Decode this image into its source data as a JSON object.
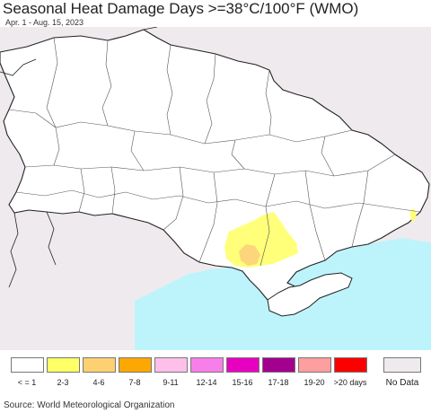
{
  "title": "Seasonal Heat Damage Days >=38°C/100°F (WMO)",
  "date_range": "Apr. 1 - Aug. 15, 2023",
  "source": "Source: World Meteorological Organization",
  "colors": {
    "land": "#ffffff",
    "outside": "#efeaee",
    "sea": "#bdf4fb",
    "borders": "#222222",
    "low_damage": "#ffff7a",
    "mid_damage": "#fdd57b"
  },
  "legend": [
    {
      "label": "< = 1",
      "color": "#ffffff"
    },
    {
      "label": "2-3",
      "color": "#ffff66"
    },
    {
      "label": "4-6",
      "color": "#fdd072"
    },
    {
      "label": "7-8",
      "color": "#fda703"
    },
    {
      "label": "9-11",
      "color": "#ffbfeb"
    },
    {
      "label": "12-14",
      "color": "#f77fe9"
    },
    {
      "label": "15-16",
      "color": "#e800c0"
    },
    {
      "label": "17-18",
      "color": "#a40090"
    },
    {
      "label": "19-20",
      "color": "#fc9f9e"
    },
    {
      "label": ">20 days",
      "color": "#fc0000"
    }
  ],
  "no_data": {
    "label": "No Data",
    "color": "#efeaee"
  }
}
